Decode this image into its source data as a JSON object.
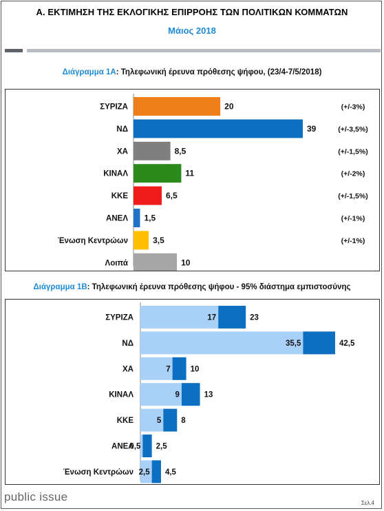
{
  "header": {
    "title": "Α. ΕΚΤΙΜΗΣΗ ΤΗΣ ΕΚΛΟΓΙΚΗΣ ΕΠΙΡΡΟΗΣ ΤΩΝ ΠΟΛΙΤΙΚΩΝ ΚΟΜΜΑΤΩΝ",
    "subtitle": "Μάιος 2018"
  },
  "chart1": {
    "label": "Διάγραμμα 1Α",
    "caption": ": Τηλεφωνική έρευνα πρόθεσης ψήφου,  (23/4-7/5/2018)"
  },
  "chart2": {
    "label": "Διάγραμμα 1Β",
    "caption": ": Τηλεφωνική έρευνα πρόθεσης ψήφου - 95% διάστημα εμπιστοσύνης"
  },
  "footer": {
    "brand": "public issue",
    "page": "Σελ.4"
  },
  "chart_data": [
    {
      "type": "bar",
      "orientation": "horizontal",
      "title": "Διάγραμμα 1Α: Τηλεφωνική έρευνα πρόθεσης ψήφου,  (23/4-7/5/2018)",
      "categories": [
        "ΣΥΡΙΖΑ",
        "ΝΔ",
        "ΧΑ",
        "ΚΙΝΑΛ",
        "ΚΚΕ",
        "ΑΝΕΛ",
        "Ένωση Κεντρώων",
        "Λοιπά"
      ],
      "values": [
        20,
        39,
        8.5,
        11,
        6.5,
        1.5,
        3.5,
        10
      ],
      "value_labels": [
        "20",
        "39",
        "8,5",
        "11",
        "6,5",
        "1,5",
        "3,5",
        "10"
      ],
      "margins": [
        "(+/-3%)",
        "(+/-3,5%)",
        "(+/-1,5%)",
        "(+/-2%)",
        "(+/-1,5%)",
        "(+/-1%)",
        "(+/-1%)",
        ""
      ],
      "colors": [
        "#ef7f1a",
        "#0d6fc2",
        "#7f7f7f",
        "#2c8a1d",
        "#f01c1c",
        "#1f73c8",
        "#ffbf00",
        "#a6a6a6"
      ],
      "xlim": [
        0,
        39
      ],
      "grid": false
    },
    {
      "type": "bar",
      "orientation": "horizontal",
      "stacked": true,
      "title": "Διάγραμμα 1Β: Τηλεφωνική έρευνα πρόθεσης ψήφου - 95% διάστημα εμπιστοσύνης",
      "categories": [
        "ΣΥΡΙΖΑ",
        "ΝΔ",
        "ΧΑ",
        "ΚΙΝΑΛ",
        "ΚΚΕ",
        "ΑΝΕΛ",
        "Ένωση Κεντρώων"
      ],
      "lower": [
        17,
        35.5,
        7,
        9,
        5,
        0.5,
        2.5
      ],
      "upper": [
        23,
        42.5,
        10,
        13,
        8,
        2.5,
        4.5
      ],
      "lower_labels": [
        "17",
        "35,5",
        "7",
        "9",
        "5",
        "0,5",
        "2,5"
      ],
      "upper_labels": [
        "23",
        "42,5",
        "10",
        "13",
        "8",
        "2,5",
        "4,5"
      ],
      "colors": {
        "lower": "#a9d1f7",
        "range": "#0d6fc2"
      },
      "xlim": [
        0,
        42.5
      ],
      "grid": false
    }
  ]
}
